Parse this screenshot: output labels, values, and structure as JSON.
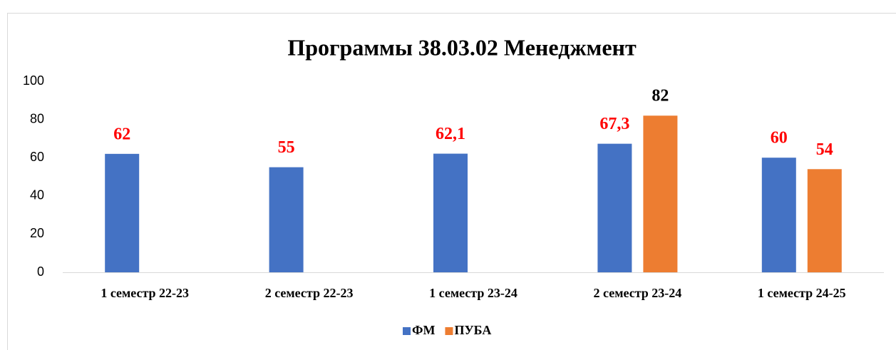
{
  "chart_data": {
    "type": "bar",
    "title": "Программы 38.03.02 Менеджмент",
    "categories": [
      "1 семестр 22-23",
      "2 семестр 22-23",
      "1 семестр 23-24",
      "2 семестр 23-24",
      "1 семестр 24-25"
    ],
    "series": [
      {
        "name": "ФМ",
        "color": "#4472c4",
        "values": [
          62,
          55,
          62.1,
          67.3,
          60
        ],
        "value_labels": [
          "62",
          "55",
          "62,1",
          "67,3",
          "60"
        ],
        "value_label_colors": [
          "#ff0000",
          "#ff0000",
          "#ff0000",
          "#ff0000",
          "#ff0000"
        ]
      },
      {
        "name": "ПУБА",
        "color": "#ed7d31",
        "values": [
          null,
          null,
          null,
          82,
          54
        ],
        "value_labels": [
          null,
          null,
          null,
          "82",
          "54"
        ],
        "value_label_colors": [
          null,
          null,
          null,
          "#000000",
          "#ff0000"
        ]
      }
    ],
    "ylim": [
      0,
      100
    ],
    "yticks": [
      0,
      20,
      40,
      60,
      80,
      100
    ],
    "grid": false,
    "legend": "bottom"
  }
}
